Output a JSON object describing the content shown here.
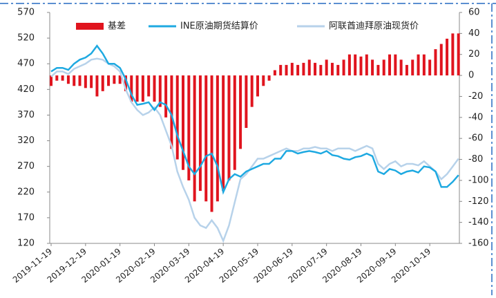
{
  "chart_data": {
    "type": "bar-line",
    "categories": [
      "2019-11-19",
      null,
      null,
      null,
      null,
      null,
      "2019-12-19",
      null,
      null,
      null,
      null,
      null,
      "2020-01-19",
      null,
      null,
      null,
      null,
      null,
      "2020-02-19",
      null,
      null,
      null,
      null,
      null,
      "2020-03-19",
      null,
      null,
      null,
      null,
      null,
      "2020-04-19",
      null,
      null,
      null,
      null,
      null,
      "2020-05-19",
      null,
      null,
      null,
      null,
      null,
      "2020-06-19",
      null,
      null,
      null,
      null,
      null,
      "2020-07-19",
      null,
      null,
      null,
      null,
      null,
      "2020-08-19",
      null,
      null,
      null,
      null,
      null,
      "2020-09-19",
      null,
      null,
      null,
      null,
      null,
      "2020-10-19",
      null,
      null,
      null,
      null,
      null
    ],
    "series": [
      {
        "name": "基差",
        "color": "#e0141e",
        "type": "bar",
        "axis": "y2",
        "values": [
          -10,
          -5,
          -5,
          -8,
          -10,
          -10,
          -12,
          -12,
          -20,
          -15,
          -10,
          -8,
          -8,
          -15,
          -25,
          -25,
          -25,
          -20,
          -25,
          -30,
          -40,
          -70,
          -80,
          -90,
          -100,
          -120,
          -110,
          -120,
          -130,
          -120,
          -110,
          -100,
          -90,
          -70,
          -50,
          -30,
          -20,
          -10,
          -5,
          5,
          10,
          10,
          12,
          10,
          12,
          15,
          12,
          10,
          15,
          12,
          10,
          15,
          20,
          20,
          18,
          20,
          15,
          10,
          15,
          20,
          20,
          15,
          10,
          15,
          20,
          20,
          15,
          25,
          30,
          35,
          40,
          40
        ]
      },
      {
        "name": "INE原油期货结算价",
        "color": "#1ea9e1",
        "type": "line",
        "values": [
          455,
          462,
          462,
          458,
          470,
          478,
          482,
          490,
          505,
          490,
          470,
          470,
          462,
          440,
          410,
          390,
          392,
          395,
          380,
          395,
          390,
          370,
          330,
          300,
          270,
          255,
          270,
          290,
          295,
          270,
          220,
          245,
          255,
          250,
          260,
          265,
          270,
          275,
          275,
          285,
          285,
          300,
          300,
          295,
          298,
          300,
          298,
          295,
          300,
          292,
          290,
          285,
          283,
          288,
          290,
          295,
          290,
          260,
          255,
          265,
          262,
          255,
          260,
          262,
          258,
          270,
          268,
          260,
          230,
          230,
          240,
          253
        ]
      },
      {
        "name": "阿联酋迪拜原油现货价",
        "color": "#b7d2ea",
        "type": "line",
        "values": [
          445,
          455,
          455,
          450,
          460,
          465,
          470,
          478,
          480,
          478,
          470,
          465,
          455,
          420,
          395,
          380,
          370,
          375,
          385,
          370,
          340,
          310,
          260,
          230,
          205,
          170,
          155,
          150,
          165,
          150,
          125,
          155,
          200,
          245,
          255,
          270,
          285,
          285,
          290,
          295,
          300,
          305,
          300,
          300,
          305,
          305,
          308,
          305,
          305,
          300,
          305,
          305,
          305,
          300,
          305,
          310,
          305,
          275,
          265,
          275,
          280,
          270,
          275,
          275,
          272,
          280,
          270,
          260,
          245,
          255,
          270,
          285
        ]
      }
    ],
    "ylim": [
      120,
      570
    ],
    "yticks": [
      120,
      170,
      220,
      270,
      320,
      370,
      420,
      470,
      520,
      570
    ],
    "y2lim": [
      -160,
      60
    ],
    "y2ticks": [
      -160,
      -140,
      -120,
      -100,
      -80,
      -60,
      -40,
      -20,
      0,
      20,
      40,
      60
    ],
    "y2tick_color": "#e0141e"
  }
}
